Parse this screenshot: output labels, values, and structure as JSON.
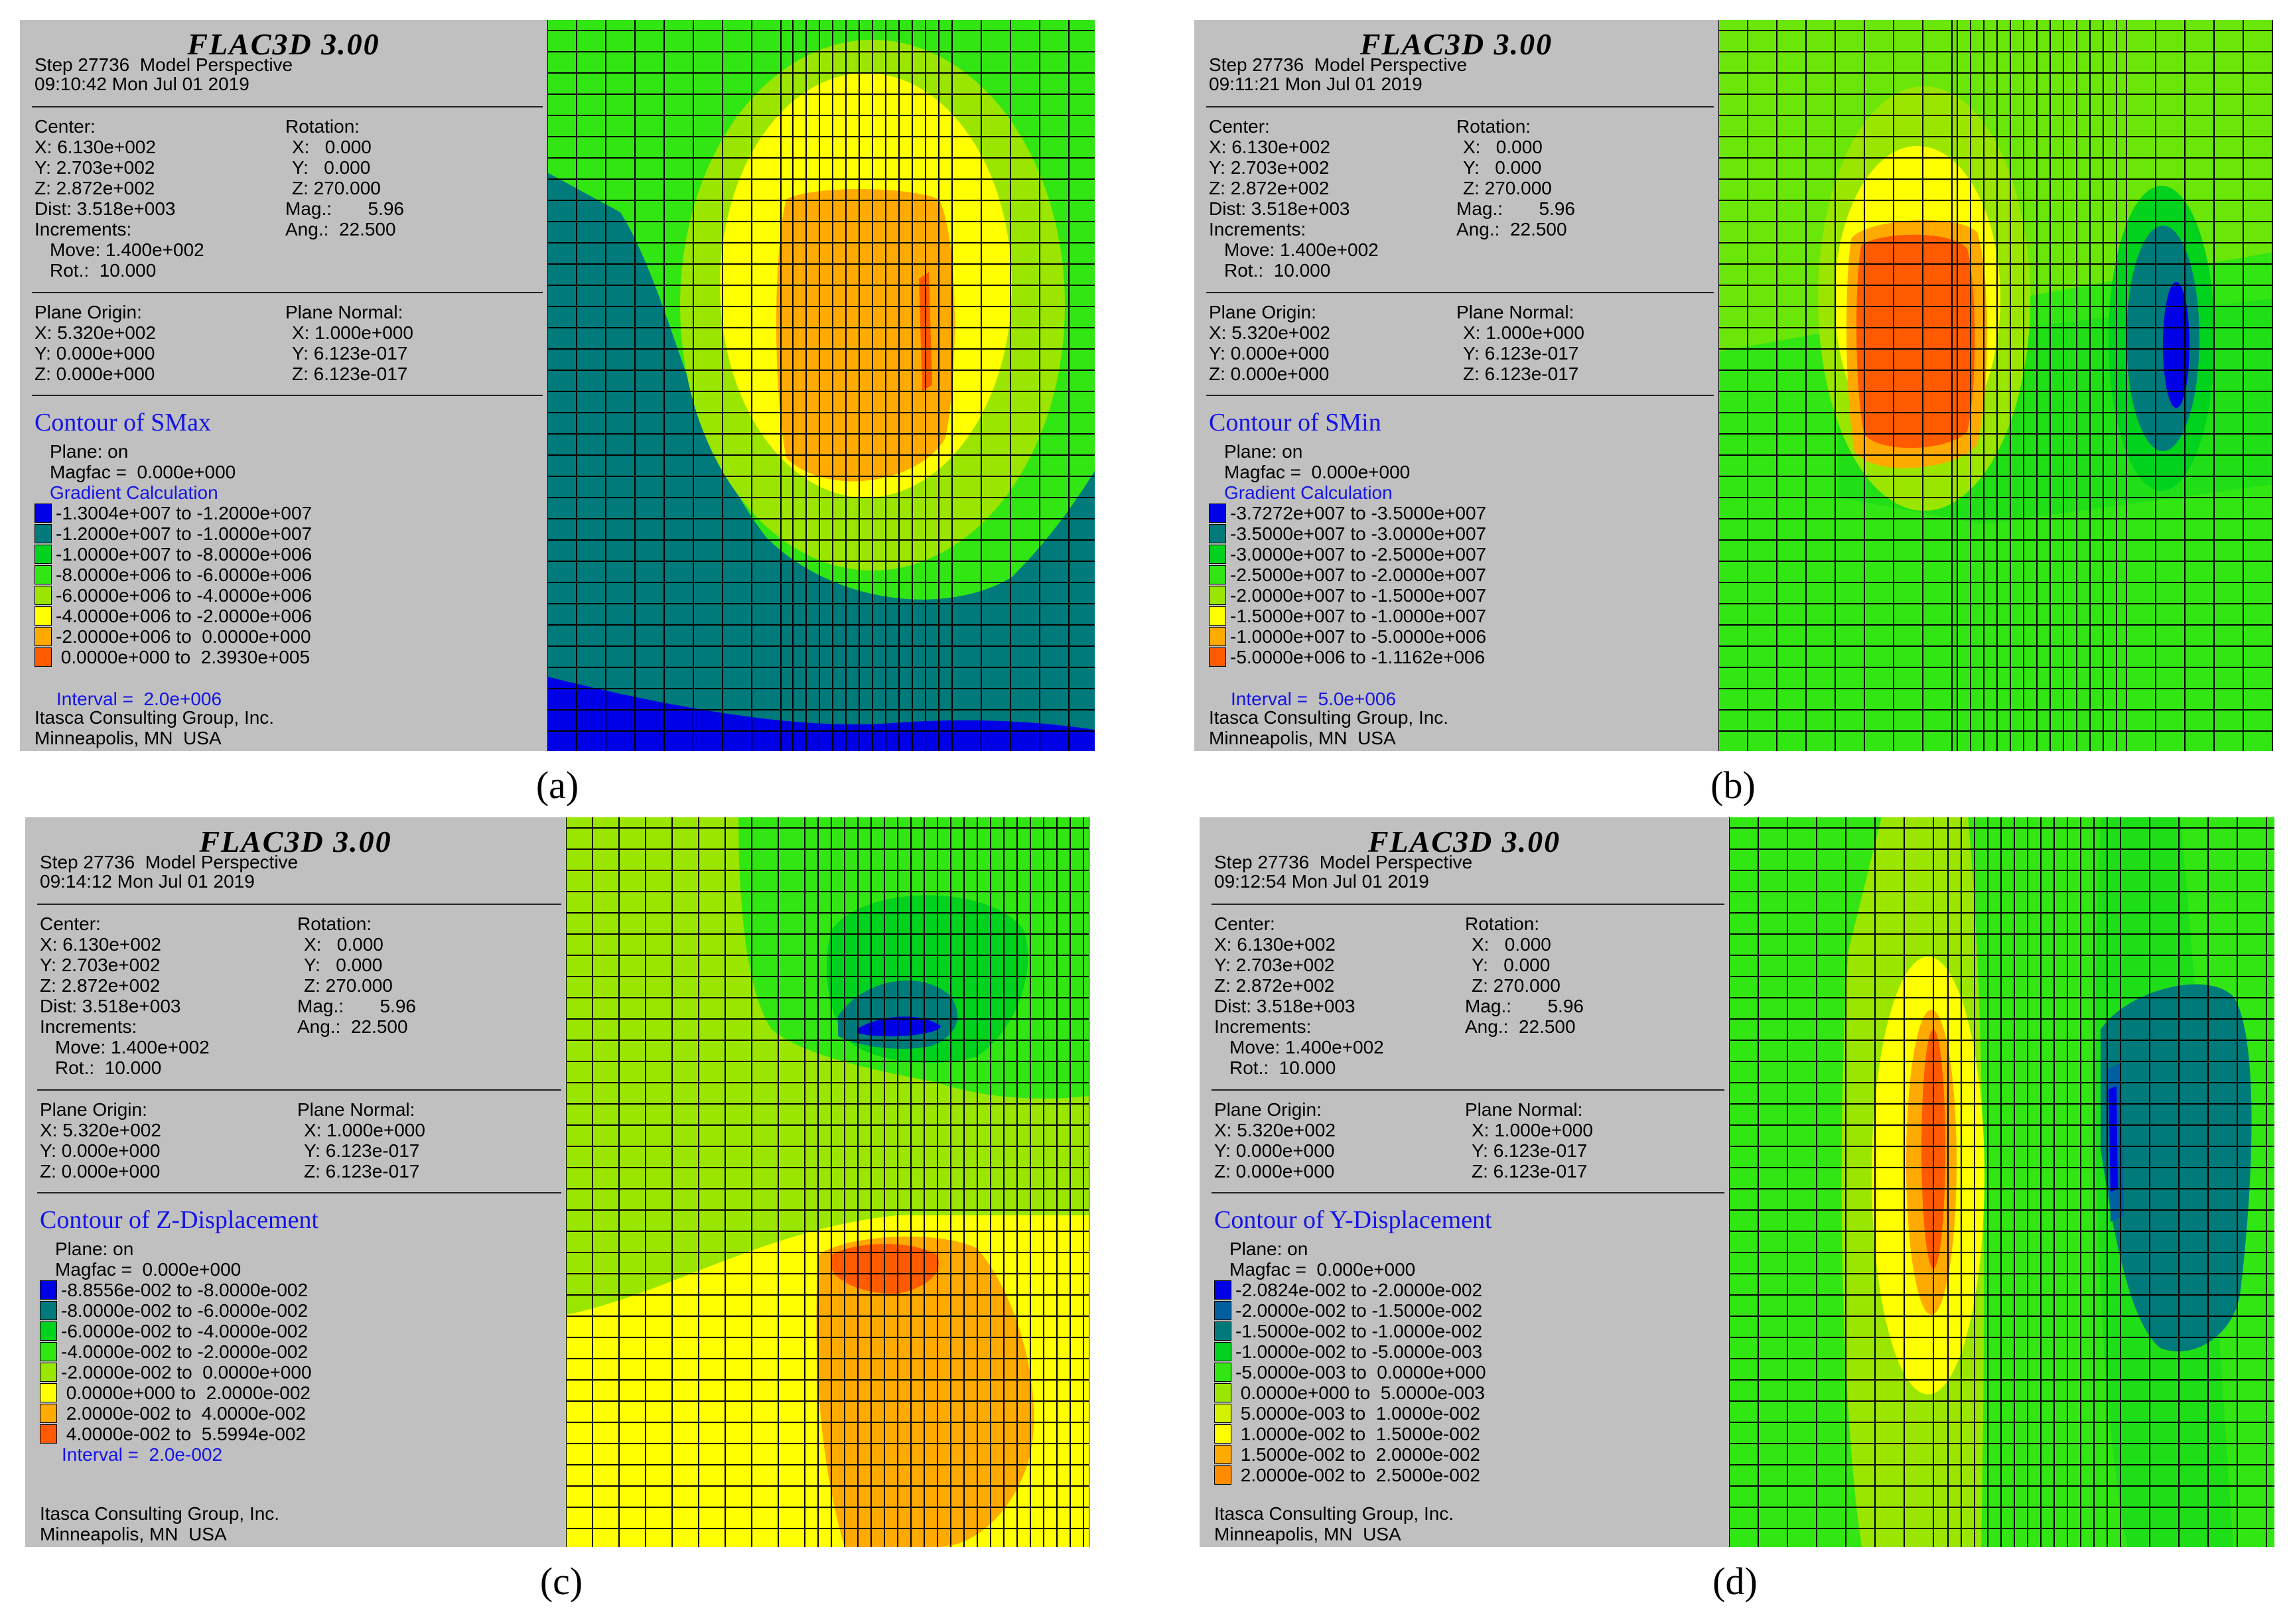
{
  "common": {
    "app_title": "FLAC3D 3.00",
    "step_line": "Step 27736  Model Perspective",
    "center_label": "Center:",
    "center_x": "X: 6.130e+002",
    "center_y": "Y: 2.703e+002",
    "center_z": "Z: 2.872e+002",
    "dist": "Dist: 3.518e+003",
    "increments": "Increments:",
    "move": "Move: 1.400e+002",
    "rot": "Rot.:  10.000",
    "rotation_label": "Rotation:",
    "rot_x": "X:   0.000",
    "rot_y": "Y:   0.000",
    "rot_z": "Z: 270.000",
    "mag": "Mag.:       5.96",
    "ang": "Ang.:  22.500",
    "plane_origin_label": "Plane Origin:",
    "po_x": "X: 5.320e+002",
    "po_y": "Y: 0.000e+000",
    "po_z": "Z: 0.000e+000",
    "plane_normal_label": "Plane Normal:",
    "pn_x": "X: 1.000e+000",
    "pn_y": "Y: 6.123e-017",
    "pn_z": "Z: 6.123e-017",
    "plane_on": "Plane: on",
    "magfac": "Magfac =  0.000e+000",
    "company": "Itasca Consulting Group, Inc.",
    "location": "Minneapolis, MN  USA"
  },
  "colors": {
    "c1": "#0000e6",
    "c2": "#007a7a",
    "c3": "#00d21e",
    "c4": "#32e614",
    "c5": "#9be600",
    "c6": "#ffff00",
    "c7": "#ffaa00",
    "c8": "#ff5a00",
    "grid": "#000000",
    "contour_title": "#1414e6",
    "panel_bg": "#c0c0c0"
  },
  "panels": [
    {
      "caption": "(a)",
      "timestamp": "09:10:42 Mon Jul 01 2019",
      "contour_title": "Contour of SMax",
      "gradient": "Gradient Calculation",
      "interval": "Interval =  2.0e+006",
      "legend": [
        "-1.3004e+007 to -1.2000e+007",
        "-1.2000e+007 to -1.0000e+007",
        "-1.0000e+007 to -8.0000e+006",
        "-8.0000e+006 to -6.0000e+006",
        "-6.0000e+006 to -4.0000e+006",
        "-4.0000e+006 to -2.0000e+006",
        "-2.0000e+006 to  0.0000e+000",
        " 0.0000e+000 to  2.3930e+005"
      ]
    },
    {
      "caption": "(b)",
      "timestamp": "09:11:21 Mon Jul 01 2019",
      "contour_title": "Contour of SMin",
      "gradient": "Gradient Calculation",
      "interval": "Interval =  5.0e+006",
      "legend": [
        "-3.7272e+007 to -3.5000e+007",
        "-3.5000e+007 to -3.0000e+007",
        "-3.0000e+007 to -2.5000e+007",
        "-2.5000e+007 to -2.0000e+007",
        "-2.0000e+007 to -1.5000e+007",
        "-1.5000e+007 to -1.0000e+007",
        "-1.0000e+007 to -5.0000e+006",
        "-5.0000e+006 to -1.1162e+006"
      ]
    },
    {
      "caption": "(c)",
      "timestamp": "09:14:12 Mon Jul 01 2019",
      "contour_title": "Contour of Z-Displacement",
      "interval": "Interval =  2.0e-002",
      "legend": [
        "-8.8556e-002 to -8.0000e-002",
        "-8.0000e-002 to -6.0000e-002",
        "-6.0000e-002 to -4.0000e-002",
        "-4.0000e-002 to -2.0000e-002",
        "-2.0000e-002 to  0.0000e+000",
        " 0.0000e+000 to  2.0000e-002",
        " 2.0000e-002 to  4.0000e-002",
        " 4.0000e-002 to  5.5994e-002"
      ]
    },
    {
      "caption": "(d)",
      "timestamp": "09:12:54 Mon Jul 01 2019",
      "contour_title": "Contour of Y-Displacement",
      "legend": [
        "-2.0824e-002 to -2.0000e-002",
        "-2.0000e-002 to -1.5000e-002",
        "-1.5000e-002 to -1.0000e-002",
        "-1.0000e-002 to -5.0000e-003",
        "-5.0000e-003 to  0.0000e+000",
        " 0.0000e+000 to  5.0000e-003",
        " 5.0000e-003 to  1.0000e-002",
        " 1.0000e-002 to  1.5000e-002",
        " 1.5000e-002 to  2.0000e-002",
        " 2.0000e-002 to  2.5000e-002"
      ]
    }
  ]
}
